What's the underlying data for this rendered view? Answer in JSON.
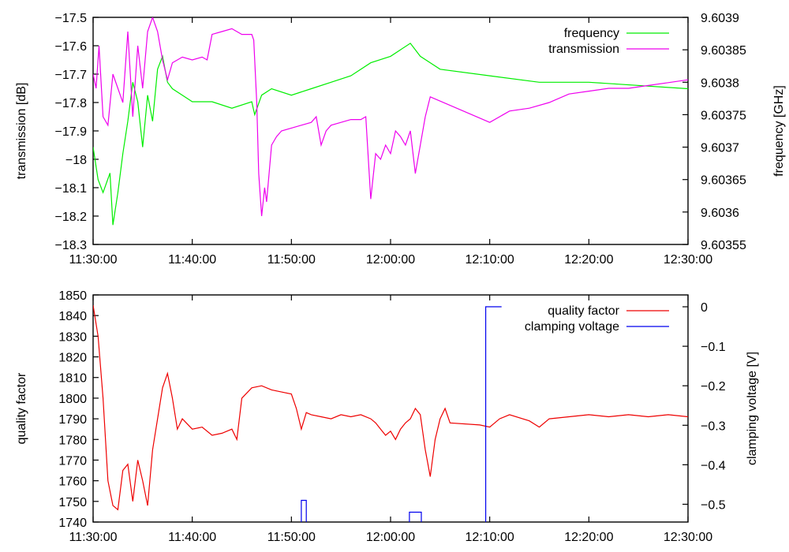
{
  "chart_data": [
    {
      "type": "line",
      "x_ticks": [
        "11:30:00",
        "11:40:00",
        "11:50:00",
        "12:00:00",
        "12:10:00",
        "12:20:00",
        "12:30:00"
      ],
      "x_range_minutes": [
        0,
        60
      ],
      "y_left": {
        "label": "transmission [dB]",
        "range": [
          -18.3,
          -17.5
        ],
        "ticks": [
          "−17.5",
          "−17.6",
          "−17.7",
          "−17.8",
          "−17.9",
          "−18",
          "−18.1",
          "−18.2",
          "−18.3"
        ]
      },
      "y_right": {
        "label": "frequency [GHz]",
        "range": [
          9.60355,
          9.6039
        ],
        "ticks": [
          "9.6039",
          "9.60385",
          "9.6038",
          "9.60375",
          "9.6037",
          "9.60365",
          "9.6036",
          "9.60355"
        ]
      },
      "legend_position": "top-right",
      "series": [
        {
          "name": "frequency",
          "axis": "right",
          "color": "#00ee00",
          "points": [
            [
              0,
              9.6037
            ],
            [
              0.5,
              9.60365
            ],
            [
              1,
              9.60363
            ],
            [
              1.7,
              9.60366
            ],
            [
              2,
              9.60358
            ],
            [
              2.5,
              9.60363
            ],
            [
              3,
              9.60369
            ],
            [
              3.5,
              9.60374
            ],
            [
              4,
              9.6038
            ],
            [
              4.5,
              9.60377
            ],
            [
              5,
              9.6037
            ],
            [
              5.5,
              9.60378
            ],
            [
              6,
              9.60374
            ],
            [
              6.5,
              9.60382
            ],
            [
              7,
              9.60384
            ],
            [
              7.5,
              9.6038
            ],
            [
              8,
              9.60379
            ],
            [
              9,
              9.60378
            ],
            [
              10,
              9.60377
            ],
            [
              12,
              9.60377
            ],
            [
              14,
              9.60376
            ],
            [
              16,
              9.60377
            ],
            [
              16.3,
              9.60375
            ],
            [
              17,
              9.60378
            ],
            [
              18,
              9.60379
            ],
            [
              20,
              9.60378
            ],
            [
              22,
              9.60379
            ],
            [
              24,
              9.6038
            ],
            [
              26,
              9.60381
            ],
            [
              28,
              9.60383
            ],
            [
              30,
              9.60384
            ],
            [
              31,
              9.60385
            ],
            [
              32,
              9.60386
            ],
            [
              33,
              9.60384
            ],
            [
              34,
              9.60383
            ],
            [
              35,
              9.60382
            ],
            [
              40,
              9.60381
            ],
            [
              45,
              9.6038
            ],
            [
              50,
              9.6038
            ],
            [
              60,
              9.60379
            ]
          ]
        },
        {
          "name": "transmission",
          "axis": "left",
          "color": "#ee00ee",
          "points": [
            [
              0,
              -17.7
            ],
            [
              0.3,
              -17.75
            ],
            [
              0.6,
              -17.6
            ],
            [
              1,
              -17.85
            ],
            [
              1.5,
              -17.88
            ],
            [
              2,
              -17.7
            ],
            [
              2.5,
              -17.75
            ],
            [
              3,
              -17.8
            ],
            [
              3.5,
              -17.55
            ],
            [
              4,
              -17.85
            ],
            [
              4.5,
              -17.6
            ],
            [
              5,
              -17.75
            ],
            [
              5.5,
              -17.55
            ],
            [
              6,
              -17.5
            ],
            [
              6.5,
              -17.55
            ],
            [
              7,
              -17.65
            ],
            [
              7.5,
              -17.72
            ],
            [
              8,
              -17.66
            ],
            [
              9,
              -17.64
            ],
            [
              10,
              -17.65
            ],
            [
              11,
              -17.64
            ],
            [
              11.5,
              -17.65
            ],
            [
              12,
              -17.56
            ],
            [
              13,
              -17.55
            ],
            [
              14,
              -17.54
            ],
            [
              15,
              -17.56
            ],
            [
              16,
              -17.56
            ],
            [
              16.2,
              -17.58
            ],
            [
              16.5,
              -17.8
            ],
            [
              16.7,
              -18.05
            ],
            [
              17,
              -18.2
            ],
            [
              17.3,
              -18.1
            ],
            [
              17.5,
              -18.15
            ],
            [
              18,
              -17.95
            ],
            [
              18.5,
              -17.92
            ],
            [
              19,
              -17.9
            ],
            [
              20,
              -17.89
            ],
            [
              21,
              -17.88
            ],
            [
              22,
              -17.87
            ],
            [
              22.5,
              -17.85
            ],
            [
              23,
              -17.95
            ],
            [
              23.5,
              -17.9
            ],
            [
              24,
              -17.88
            ],
            [
              25,
              -17.87
            ],
            [
              26,
              -17.86
            ],
            [
              27,
              -17.86
            ],
            [
              27.5,
              -17.85
            ],
            [
              28,
              -18.14
            ],
            [
              28.5,
              -17.98
            ],
            [
              29,
              -18.0
            ],
            [
              29.5,
              -17.95
            ],
            [
              30,
              -17.98
            ],
            [
              30.5,
              -17.9
            ],
            [
              31,
              -17.92
            ],
            [
              31.5,
              -17.95
            ],
            [
              32,
              -17.9
            ],
            [
              32.5,
              -18.05
            ],
            [
              33,
              -17.95
            ],
            [
              33.5,
              -17.85
            ],
            [
              34,
              -17.78
            ],
            [
              40,
              -17.87
            ],
            [
              42,
              -17.83
            ],
            [
              44,
              -17.82
            ],
            [
              46,
              -17.8
            ],
            [
              48,
              -17.77
            ],
            [
              50,
              -17.76
            ],
            [
              52,
              -17.75
            ],
            [
              54,
              -17.75
            ],
            [
              56,
              -17.74
            ],
            [
              58,
              -17.73
            ],
            [
              60,
              -17.72
            ]
          ]
        }
      ]
    },
    {
      "type": "line",
      "x_ticks": [
        "11:30:00",
        "11:40:00",
        "11:50:00",
        "12:00:00",
        "12:10:00",
        "12:20:00",
        "12:30:00"
      ],
      "x_range_minutes": [
        0,
        60
      ],
      "y_left": {
        "label": "quality factor",
        "range": [
          1740,
          1850
        ],
        "ticks": [
          "1850",
          "1840",
          "1830",
          "1820",
          "1810",
          "1800",
          "1790",
          "1780",
          "1770",
          "1760",
          "1750",
          "1740"
        ]
      },
      "y_right": {
        "label": "clamping voltage [V]",
        "range": [
          -0.545,
          0.03
        ],
        "ticks": [
          "0",
          "−0.1",
          "−0.2",
          "−0.3",
          "−0.4",
          "−0.5"
        ]
      },
      "legend_position": "top-right",
      "series": [
        {
          "name": "quality factor",
          "axis": "left",
          "color": "#ee0000",
          "points": [
            [
              0,
              1845
            ],
            [
              0.5,
              1830
            ],
            [
              1,
              1800
            ],
            [
              1.5,
              1760
            ],
            [
              2,
              1748
            ],
            [
              2.5,
              1746
            ],
            [
              3,
              1765
            ],
            [
              3.5,
              1768
            ],
            [
              4,
              1750
            ],
            [
              4.5,
              1770
            ],
            [
              5,
              1760
            ],
            [
              5.5,
              1748
            ],
            [
              6,
              1775
            ],
            [
              6.5,
              1790
            ],
            [
              7,
              1805
            ],
            [
              7.5,
              1812
            ],
            [
              8,
              1800
            ],
            [
              8.5,
              1785
            ],
            [
              9,
              1790
            ],
            [
              10,
              1785
            ],
            [
              11,
              1786
            ],
            [
              12,
              1782
            ],
            [
              13,
              1783
            ],
            [
              14,
              1785
            ],
            [
              14.5,
              1780
            ],
            [
              15,
              1800
            ],
            [
              16,
              1805
            ],
            [
              17,
              1806
            ],
            [
              18,
              1804
            ],
            [
              19,
              1803
            ],
            [
              20,
              1802
            ],
            [
              20.5,
              1795
            ],
            [
              21,
              1785
            ],
            [
              21.5,
              1793
            ],
            [
              22,
              1792
            ],
            [
              23,
              1791
            ],
            [
              24,
              1790
            ],
            [
              25,
              1792
            ],
            [
              26,
              1791
            ],
            [
              27,
              1792
            ],
            [
              28,
              1790
            ],
            [
              28.5,
              1788
            ],
            [
              29,
              1785
            ],
            [
              29.5,
              1782
            ],
            [
              30,
              1784
            ],
            [
              30.5,
              1780
            ],
            [
              31,
              1785
            ],
            [
              31.5,
              1788
            ],
            [
              32,
              1790
            ],
            [
              32.5,
              1795
            ],
            [
              33,
              1792
            ],
            [
              33.5,
              1775
            ],
            [
              34,
              1762
            ],
            [
              34.5,
              1780
            ],
            [
              35,
              1790
            ],
            [
              35.5,
              1795
            ],
            [
              36,
              1788
            ],
            [
              39,
              1787
            ],
            [
              40,
              1786
            ],
            [
              41,
              1790
            ],
            [
              42,
              1792
            ],
            [
              44,
              1789
            ],
            [
              45,
              1786
            ],
            [
              46,
              1790
            ],
            [
              48,
              1791
            ],
            [
              50,
              1792
            ],
            [
              52,
              1791
            ],
            [
              54,
              1792
            ],
            [
              56,
              1791
            ],
            [
              58,
              1792
            ],
            [
              60,
              1791
            ]
          ]
        },
        {
          "name": "clamping voltage",
          "axis": "right",
          "color": "#0000ee",
          "points": [
            [
              21.0,
              -0.55
            ],
            [
              21.0,
              -0.49
            ],
            [
              21.5,
              -0.49
            ],
            [
              21.5,
              -0.55
            ],
            [
              31.9,
              -0.55
            ],
            [
              31.9,
              -0.52
            ],
            [
              33.1,
              -0.52
            ],
            [
              33.1,
              -0.55
            ],
            [
              39.6,
              -0.55
            ],
            [
              39.6,
              0.0
            ],
            [
              41.2,
              0.0
            ]
          ]
        }
      ]
    }
  ]
}
